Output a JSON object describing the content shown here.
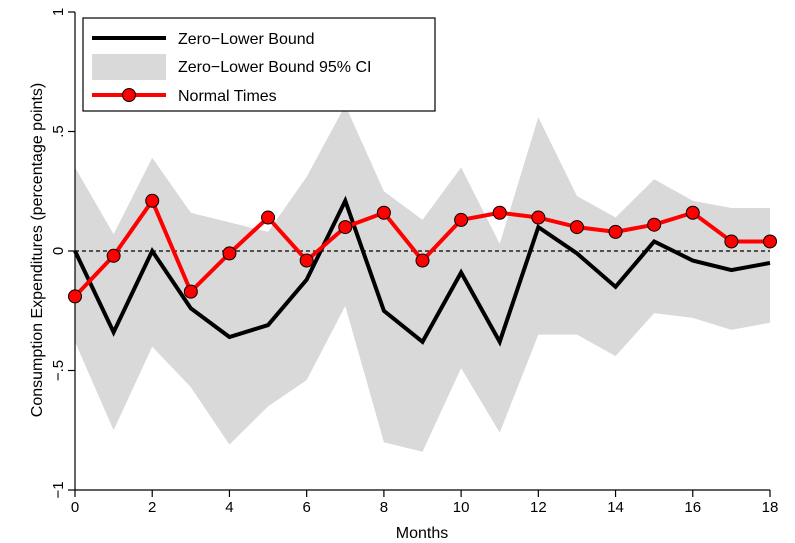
{
  "chart_data": {
    "type": "line",
    "xlabel": "Months",
    "ylabel": "Consumption Expenditures (percentage points)",
    "xlim": [
      0,
      18
    ],
    "ylim": [
      -1,
      1
    ],
    "x_ticks": [
      0,
      2,
      4,
      6,
      8,
      10,
      12,
      14,
      16,
      18
    ],
    "y_ticks": [
      -1,
      -0.5,
      0,
      0.5,
      1
    ],
    "y_tick_labels": [
      "−1",
      "−.5",
      "0",
      ".5",
      "1"
    ],
    "reference_line": {
      "y": 0,
      "style": "dashed"
    },
    "grid": false,
    "legend_position": "top-left",
    "x": [
      0,
      1,
      2,
      3,
      4,
      5,
      6,
      7,
      8,
      9,
      10,
      11,
      12,
      13,
      14,
      15,
      16,
      17,
      18
    ],
    "series": [
      {
        "name": "Zero−Lower Bound",
        "kind": "line",
        "color": "#000000",
        "values": [
          0.0,
          -0.34,
          0.0,
          -0.24,
          -0.36,
          -0.31,
          -0.12,
          0.21,
          -0.25,
          -0.38,
          -0.09,
          -0.38,
          0.1,
          -0.01,
          -0.15,
          0.04,
          -0.04,
          -0.08,
          -0.05
        ]
      },
      {
        "name": "Zero−Lower Bound 95% CI",
        "kind": "band",
        "color": "#d9d9d9",
        "lower": [
          -0.38,
          -0.75,
          -0.4,
          -0.57,
          -0.81,
          -0.65,
          -0.54,
          -0.23,
          -0.8,
          -0.84,
          -0.49,
          -0.76,
          -0.35,
          -0.35,
          -0.44,
          -0.26,
          -0.28,
          -0.33,
          -0.3
        ],
        "upper": [
          0.35,
          0.07,
          0.39,
          0.16,
          0.12,
          0.08,
          0.31,
          0.61,
          0.25,
          0.13,
          0.35,
          0.03,
          0.56,
          0.23,
          0.14,
          0.3,
          0.21,
          0.18,
          0.18
        ]
      },
      {
        "name": "Normal Times",
        "kind": "line-markers",
        "color": "#ff0000",
        "values": [
          -0.19,
          -0.02,
          0.21,
          -0.17,
          -0.01,
          0.14,
          -0.04,
          0.1,
          0.16,
          -0.04,
          0.13,
          0.16,
          0.14,
          0.1,
          0.08,
          0.11,
          0.16,
          0.04,
          0.04
        ]
      }
    ]
  }
}
